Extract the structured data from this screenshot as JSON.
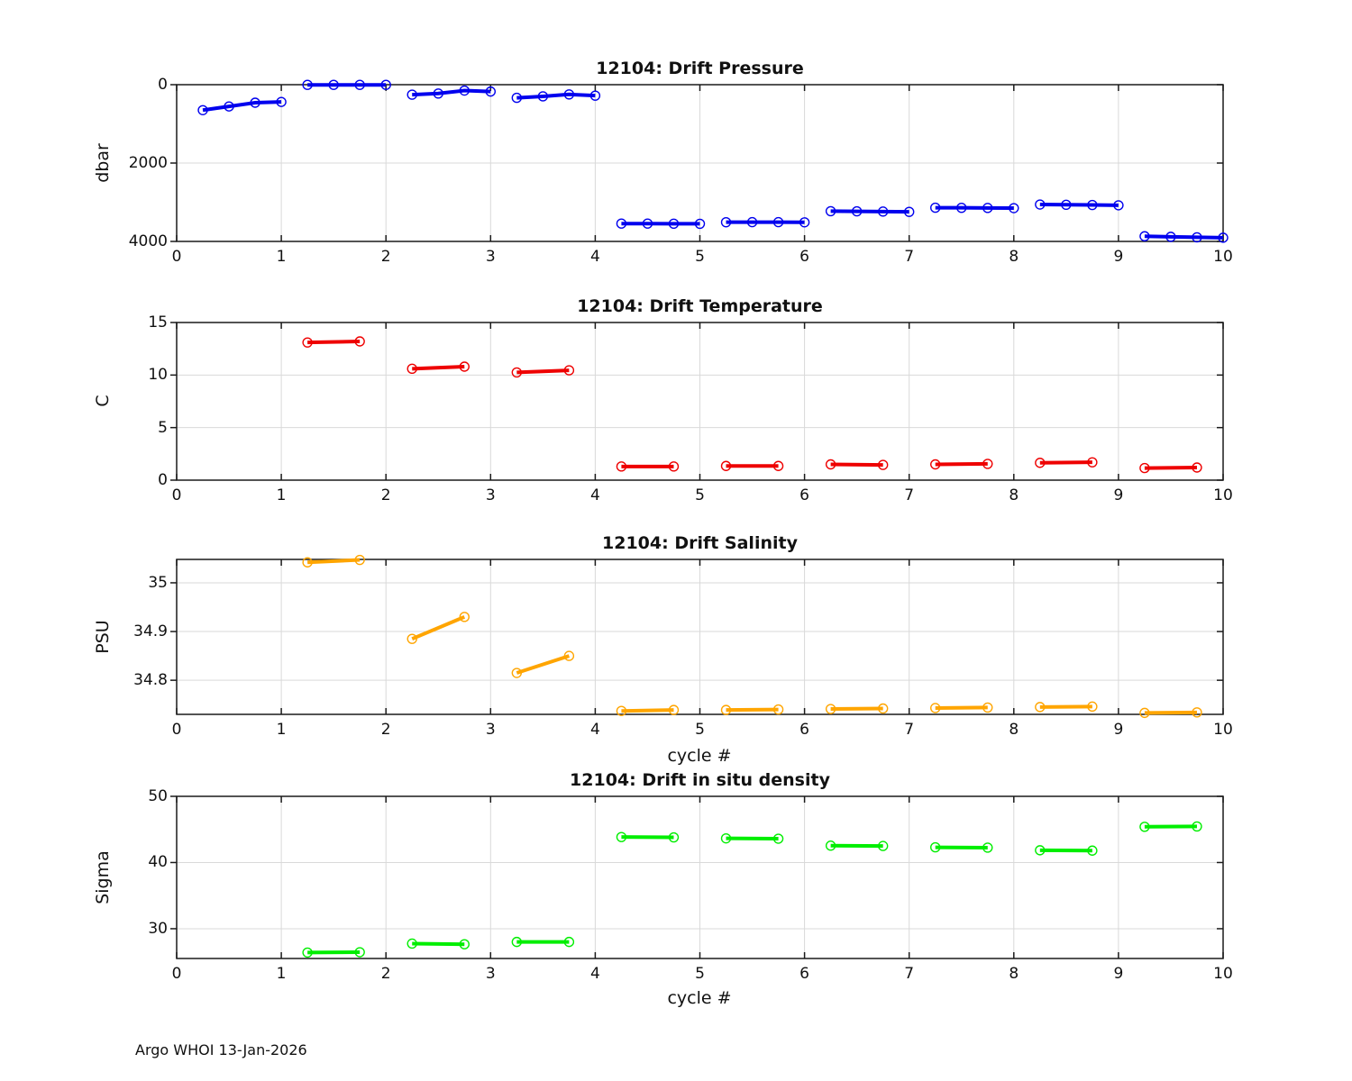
{
  "figure": {
    "footer": "Argo WHOI 13-Jan-2026"
  },
  "chart_data": [
    {
      "type": "line",
      "title": "12104: Drift Pressure",
      "ylabel": "dbar",
      "xlabel": "",
      "color": "#0000EE",
      "grid": true,
      "marker": "open-circle",
      "y_reversed": true,
      "xlim": [
        0,
        10
      ],
      "ylim": [
        0,
        4000
      ],
      "x_ticks": [
        0,
        1,
        2,
        3,
        4,
        5,
        6,
        7,
        8,
        9,
        10
      ],
      "x_tick_labels": [
        "0",
        "1",
        "2",
        "3",
        "4",
        "5",
        "6",
        "7",
        "8",
        "9",
        "10"
      ],
      "y_ticks": [
        0,
        2000,
        4000
      ],
      "y_tick_labels": [
        "0",
        "2000",
        "4000"
      ],
      "series": [
        {
          "x": [
            0.25,
            0.5,
            0.75,
            1.0
          ],
          "y": [
            650,
            555,
            460,
            440
          ]
        },
        {
          "x": [
            1.25,
            1.5,
            1.75,
            2.0
          ],
          "y": [
            5,
            5,
            5,
            5
          ]
        },
        {
          "x": [
            2.25,
            2.5,
            2.75,
            3.0
          ],
          "y": [
            255,
            225,
            150,
            175
          ]
        },
        {
          "x": [
            3.25,
            3.5,
            3.75,
            4.0
          ],
          "y": [
            335,
            298,
            248,
            280
          ]
        },
        {
          "x": [
            4.25,
            4.5,
            4.75,
            5.0
          ],
          "y": [
            3545,
            3545,
            3548,
            3550
          ]
        },
        {
          "x": [
            5.25,
            5.5,
            5.75,
            6.0
          ],
          "y": [
            3510,
            3508,
            3508,
            3512
          ]
        },
        {
          "x": [
            6.25,
            6.5,
            6.75,
            7.0
          ],
          "y": [
            3228,
            3232,
            3238,
            3245
          ]
        },
        {
          "x": [
            7.25,
            7.5,
            7.75,
            8.0
          ],
          "y": [
            3140,
            3142,
            3146,
            3150
          ]
        },
        {
          "x": [
            8.25,
            8.5,
            8.75,
            9.0
          ],
          "y": [
            3058,
            3064,
            3070,
            3078
          ]
        },
        {
          "x": [
            9.25,
            9.5,
            9.75,
            10.0
          ],
          "y": [
            3868,
            3882,
            3895,
            3905
          ]
        }
      ]
    },
    {
      "type": "line",
      "title": "12104: Drift Temperature",
      "ylabel": "C",
      "xlabel": "",
      "color": "#EE0000",
      "grid": true,
      "marker": "open-circle",
      "y_reversed": false,
      "xlim": [
        0,
        10
      ],
      "ylim": [
        0,
        15
      ],
      "x_ticks": [
        0,
        1,
        2,
        3,
        4,
        5,
        6,
        7,
        8,
        9,
        10
      ],
      "x_tick_labels": [
        "0",
        "1",
        "2",
        "3",
        "4",
        "5",
        "6",
        "7",
        "8",
        "9",
        "10"
      ],
      "y_ticks": [
        0,
        5,
        10,
        15
      ],
      "y_tick_labels": [
        "0",
        "5",
        "10",
        "15"
      ],
      "series": [
        {
          "x": [
            1.25,
            1.75
          ],
          "y": [
            13.1,
            13.2
          ]
        },
        {
          "x": [
            2.25,
            2.75
          ],
          "y": [
            10.6,
            10.8
          ]
        },
        {
          "x": [
            3.25,
            3.75
          ],
          "y": [
            10.25,
            10.45
          ]
        },
        {
          "x": [
            4.25,
            4.75
          ],
          "y": [
            1.3,
            1.3
          ]
        },
        {
          "x": [
            5.25,
            5.75
          ],
          "y": [
            1.35,
            1.35
          ]
        },
        {
          "x": [
            6.25,
            6.75
          ],
          "y": [
            1.5,
            1.45
          ]
        },
        {
          "x": [
            7.25,
            7.75
          ],
          "y": [
            1.5,
            1.55
          ]
        },
        {
          "x": [
            8.25,
            8.75
          ],
          "y": [
            1.65,
            1.7
          ]
        },
        {
          "x": [
            9.25,
            9.75
          ],
          "y": [
            1.15,
            1.2
          ]
        }
      ]
    },
    {
      "type": "line",
      "title": "12104: Drift Salinity",
      "ylabel": "PSU",
      "xlabel": "cycle #",
      "color": "#FFA500",
      "grid": true,
      "marker": "open-circle",
      "y_reversed": false,
      "xlim": [
        0,
        10
      ],
      "ylim": [
        34.73,
        35.048
      ],
      "x_ticks": [
        0,
        1,
        2,
        3,
        4,
        5,
        6,
        7,
        8,
        9,
        10
      ],
      "x_tick_labels": [
        "0",
        "1",
        "2",
        "3",
        "4",
        "5",
        "6",
        "7",
        "8",
        "9",
        "10"
      ],
      "y_ticks": [
        34.8,
        34.9,
        35
      ],
      "y_tick_labels": [
        "34.8",
        "34.9",
        "35"
      ],
      "series": [
        {
          "x": [
            1.25,
            1.75
          ],
          "y": [
            35.042,
            35.047
          ]
        },
        {
          "x": [
            2.25,
            2.75
          ],
          "y": [
            34.885,
            34.93
          ]
        },
        {
          "x": [
            3.25,
            3.75
          ],
          "y": [
            34.815,
            34.85
          ]
        },
        {
          "x": [
            4.25,
            4.75
          ],
          "y": [
            34.737,
            34.739
          ]
        },
        {
          "x": [
            5.25,
            5.75
          ],
          "y": [
            34.739,
            34.74
          ]
        },
        {
          "x": [
            6.25,
            6.75
          ],
          "y": [
            34.741,
            34.742
          ]
        },
        {
          "x": [
            7.25,
            7.75
          ],
          "y": [
            34.743,
            34.744
          ]
        },
        {
          "x": [
            8.25,
            8.75
          ],
          "y": [
            34.745,
            34.746
          ]
        },
        {
          "x": [
            9.25,
            9.75
          ],
          "y": [
            34.733,
            34.734
          ]
        }
      ]
    },
    {
      "type": "line",
      "title": "12104: Drift in situ density",
      "ylabel": "Sigma",
      "xlabel": "cycle #",
      "color": "#00EE00",
      "grid": true,
      "marker": "open-circle",
      "y_reversed": false,
      "xlim": [
        0,
        10
      ],
      "ylim": [
        25.5,
        50
      ],
      "x_ticks": [
        0,
        1,
        2,
        3,
        4,
        5,
        6,
        7,
        8,
        9,
        10
      ],
      "x_tick_labels": [
        "0",
        "1",
        "2",
        "3",
        "4",
        "5",
        "6",
        "7",
        "8",
        "9",
        "10"
      ],
      "y_ticks": [
        30,
        40,
        50
      ],
      "y_tick_labels": [
        "30",
        "40",
        "50"
      ],
      "series": [
        {
          "x": [
            1.25,
            1.75
          ],
          "y": [
            26.4,
            26.45
          ]
        },
        {
          "x": [
            2.25,
            2.75
          ],
          "y": [
            27.75,
            27.65
          ]
        },
        {
          "x": [
            3.25,
            3.75
          ],
          "y": [
            28.0,
            28.0
          ]
        },
        {
          "x": [
            4.25,
            4.75
          ],
          "y": [
            43.85,
            43.8
          ]
        },
        {
          "x": [
            5.25,
            5.75
          ],
          "y": [
            43.65,
            43.6
          ]
        },
        {
          "x": [
            6.25,
            6.75
          ],
          "y": [
            42.55,
            42.5
          ]
        },
        {
          "x": [
            7.25,
            7.75
          ],
          "y": [
            42.3,
            42.25
          ]
        },
        {
          "x": [
            8.25,
            8.75
          ],
          "y": [
            41.85,
            41.8
          ]
        },
        {
          "x": [
            9.25,
            9.75
          ],
          "y": [
            45.4,
            45.45
          ]
        }
      ]
    }
  ]
}
